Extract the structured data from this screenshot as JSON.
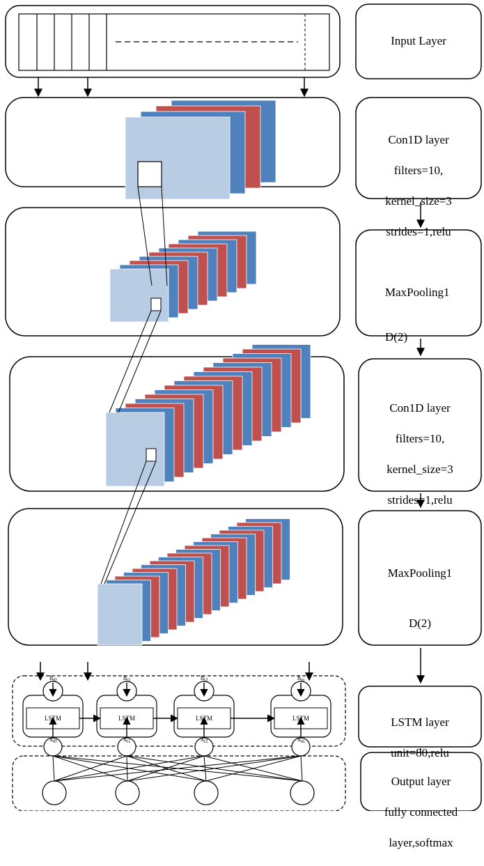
{
  "right_column": {
    "input_layer": "Input Layer",
    "conv1": [
      "Con1D layer",
      "filters=10,",
      "kernel_size=3",
      "strides=1,relu"
    ],
    "pool1": [
      "MaxPooling1",
      "D(2)"
    ],
    "conv2": [
      "Con1D layer",
      "filters=10,",
      "kernel_size=3",
      "strides=1,relu"
    ],
    "pool2": [
      "MaxPooling1",
      "D(2)"
    ],
    "lstm": [
      "LSTM layer",
      "unit=80,relu"
    ],
    "output": [
      "Output layer",
      "fully connected",
      "layer,softmax"
    ]
  },
  "lstm_cells": [
    {
      "label": "LSTM",
      "h": "t0",
      "x": "t0"
    },
    {
      "label": "LSTM",
      "h": "t1",
      "x": "t1"
    },
    {
      "label": "LSTM",
      "h": "t2",
      "x": "t2"
    },
    {
      "label": "LSTM",
      "h": "tn",
      "x": "tn"
    }
  ],
  "colors": {
    "front": "#b8cce4",
    "blue": "#4f81bd",
    "red": "#c0504d",
    "stroke": "#000000"
  }
}
